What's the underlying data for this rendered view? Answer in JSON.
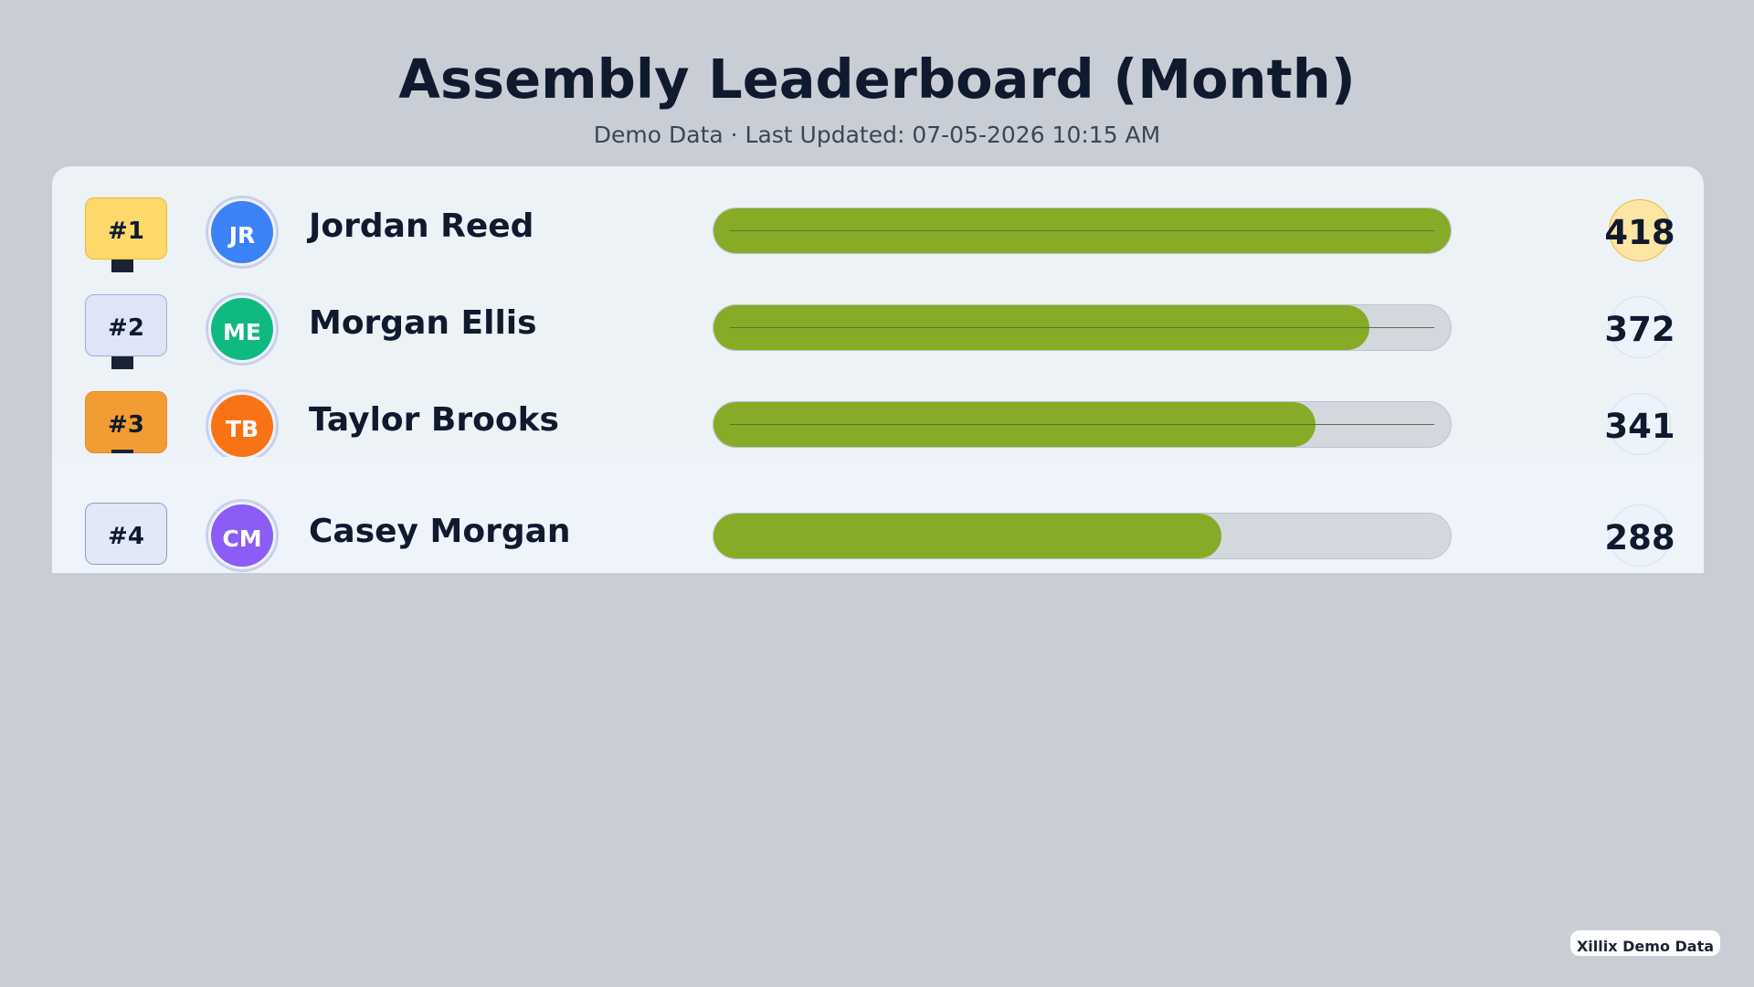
{
  "header": {
    "title": "Assembly Leaderboard (Month)",
    "subtitle": "Demo Data · Last Updated: 07-05-2026 10:15 AM"
  },
  "colors": {
    "bar_fill": "#86ab26",
    "bar_track": "#d3d8df",
    "background": "#c9ced6",
    "panel": "#edf2f6"
  },
  "max_score": 418,
  "leaders": [
    {
      "rank": "#1",
      "initials": "JR",
      "name": "Jordan Reed",
      "score": "418",
      "progress": 1.0,
      "rank_color": "#fdd86a",
      "rank_border": "#e8b93a",
      "avatar_color": "#3b82f6",
      "score_bg": "#fde5a3",
      "score_border": "#e8b93a"
    },
    {
      "rank": "#2",
      "initials": "ME",
      "name": "Morgan Ellis",
      "score": "372",
      "progress": 0.89,
      "rank_color": "#dde5f7",
      "rank_border": "#9fb0d4",
      "avatar_color": "#10b981",
      "score_bg": "#edf3fb",
      "score_border": "#d7dfe9"
    },
    {
      "rank": "#3",
      "initials": "TB",
      "name": "Taylor Brooks",
      "score": "341",
      "progress": 0.816,
      "rank_color": "#f39c33",
      "rank_border": "#e6892a",
      "avatar_color": "#f97316",
      "score_bg": "#edf3fb",
      "score_border": "#d7dfe9"
    },
    {
      "rank": "#4",
      "initials": "CM",
      "name": "Casey Morgan",
      "score": "288",
      "progress": 0.689,
      "rank_color": "#e1e9f7",
      "rank_border": "#8c9ec2",
      "avatar_color": "#8b5cf6",
      "score_bg": "#edf3fb",
      "score_border": "#d7dfe9"
    }
  ],
  "footer": {
    "badge": "Xillix Demo Data"
  }
}
